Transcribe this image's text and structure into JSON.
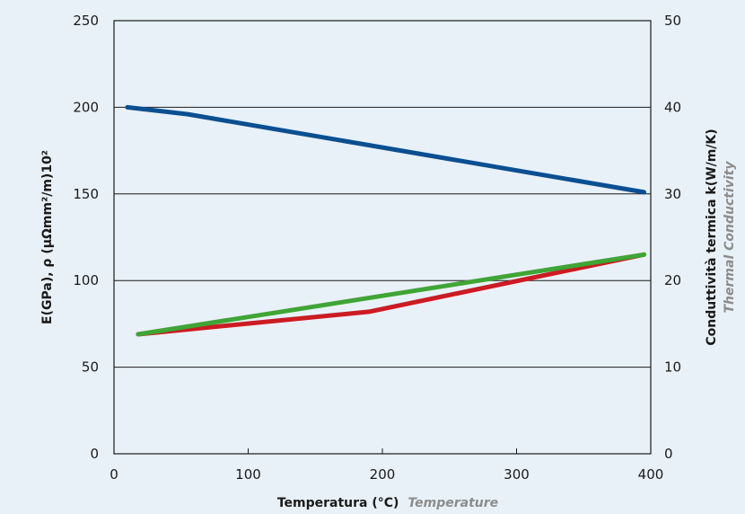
{
  "chart_data": {
    "type": "line",
    "xlabel": "Temperatura (°C)",
    "xlabel_en": "Temperature",
    "ylabel": "E(GPa), ρ (μΩmm²/m)10²",
    "y2label": "Conduttività termica  k(W/m/K)",
    "y2label_en": "Thermal Conductivity",
    "xlim": [
      0,
      400
    ],
    "ylim": [
      0,
      250
    ],
    "y2lim": [
      0,
      50
    ],
    "x_ticks": [
      "0",
      "100",
      "200",
      "300",
      "400"
    ],
    "y_ticks": [
      "0",
      "50",
      "100",
      "150",
      "200",
      "250"
    ],
    "y2_ticks": [
      "0",
      "10",
      "20",
      "30",
      "40",
      "50"
    ],
    "grid": "horizontal",
    "series": [
      {
        "color": "#0b4f91",
        "axis": "left",
        "x": [
          10,
          55,
          395
        ],
        "y": [
          200,
          196,
          151
        ]
      },
      {
        "color": "#cc1b22",
        "axis": "left",
        "x": [
          18,
          190,
          395
        ],
        "y": [
          69,
          82,
          115
        ]
      },
      {
        "color": "#3fa535",
        "axis": "left",
        "x": [
          18,
          395
        ],
        "y": [
          69,
          115
        ]
      }
    ]
  }
}
